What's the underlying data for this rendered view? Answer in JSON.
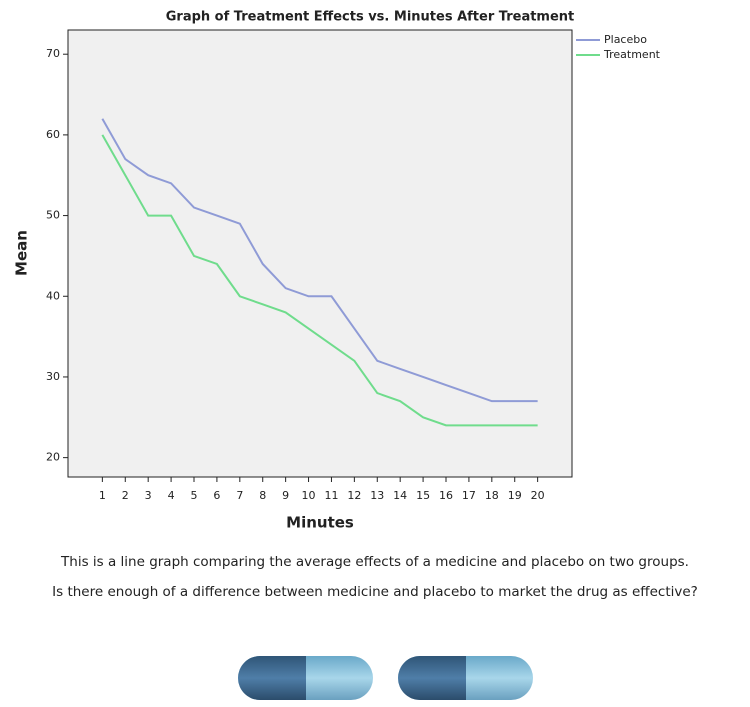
{
  "chart_data": {
    "type": "line",
    "title": "Graph of Treatment Effects vs. Minutes After Treatment",
    "xlabel": "Minutes",
    "ylabel": "Mean",
    "x": [
      1,
      2,
      3,
      4,
      5,
      6,
      7,
      8,
      9,
      10,
      11,
      12,
      13,
      14,
      15,
      16,
      17,
      18,
      19,
      20
    ],
    "series": [
      {
        "name": "Placebo",
        "color": "#8f9bd6",
        "values": [
          62,
          57,
          55,
          54,
          51,
          50,
          49,
          44,
          41,
          40,
          40,
          36,
          32,
          31,
          30,
          29,
          28,
          27,
          27,
          27
        ]
      },
      {
        "name": "Treatment",
        "color": "#6fdc8c",
        "values": [
          60,
          55,
          50,
          50,
          45,
          44,
          40,
          39,
          38,
          36,
          34,
          32,
          28,
          27,
          25,
          24,
          24,
          24,
          24,
          24
        ]
      }
    ],
    "xlim": [
      -0.5,
      21.5
    ],
    "xticks": [
      1,
      2,
      3,
      4,
      5,
      6,
      7,
      8,
      9,
      10,
      11,
      12,
      13,
      14,
      15,
      16,
      17,
      18,
      19,
      20
    ],
    "ylim": [
      17.6,
      73
    ],
    "yticks": [
      20,
      30,
      40,
      50,
      60,
      70
    ],
    "grid": false,
    "legend": "outside-top-right"
  },
  "caption": [
    "This is a line graph comparing the average effects of a medicine and placebo on two groups.",
    "Is there enough of a difference between medicine and placebo to market the drug as effective?"
  ]
}
